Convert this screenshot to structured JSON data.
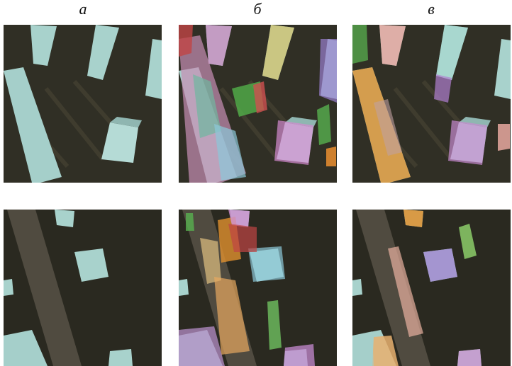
{
  "figure": {
    "columns": [
      {
        "label": "а"
      },
      {
        "label": "б"
      },
      {
        "label": "в"
      }
    ]
  }
}
